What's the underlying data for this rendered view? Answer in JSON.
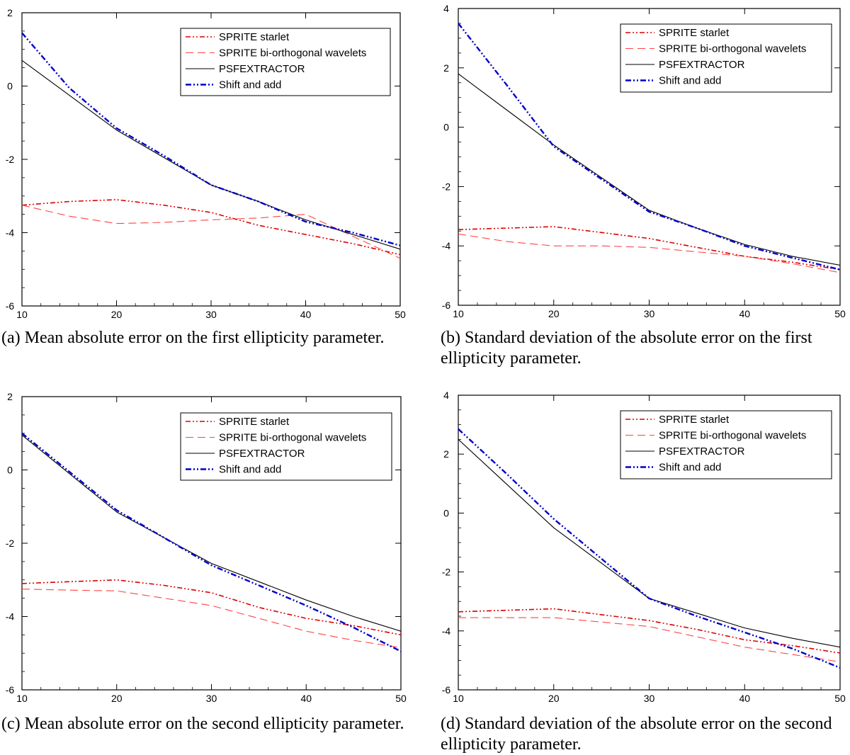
{
  "chart_data": [
    {
      "type": "line",
      "panel": "a",
      "caption": "(a) Mean absolute error on the first ellipticity parameter.",
      "xlim": [
        10,
        50
      ],
      "ylim": [
        -6,
        2
      ],
      "xticks": [
        10,
        20,
        30,
        40,
        50
      ],
      "yticks": [
        -6,
        -4,
        -2,
        0,
        2
      ],
      "legend_position": "top-right",
      "series": [
        {
          "name": "SPRITE starlet",
          "style": "dash-dot-dot",
          "color": "#dd0000",
          "x": [
            10,
            15,
            20,
            25,
            30,
            35,
            40,
            45,
            50
          ],
          "y": [
            -3.25,
            -3.15,
            -3.1,
            -3.25,
            -3.45,
            -3.8,
            -4.05,
            -4.3,
            -4.6
          ]
        },
        {
          "name": "SPRITE bi-orthogonal wavelets",
          "style": "dashed",
          "color": "#ff4444",
          "x": [
            10,
            15,
            20,
            25,
            30,
            35,
            40,
            45,
            50
          ],
          "y": [
            -3.25,
            -3.55,
            -3.75,
            -3.72,
            -3.65,
            -3.6,
            -3.5,
            -4.1,
            -4.7
          ]
        },
        {
          "name": "PSFEXTRACTOR",
          "style": "solid",
          "color": "#000000",
          "x": [
            10,
            15,
            20,
            25,
            30,
            35,
            40,
            45,
            50
          ],
          "y": [
            0.7,
            -0.25,
            -1.2,
            -1.95,
            -2.7,
            -3.15,
            -3.65,
            -4.05,
            -4.45
          ]
        },
        {
          "name": "Shift and add",
          "style": "dash-dot-dot-thick",
          "color": "#0000cc",
          "x": [
            10,
            15,
            20,
            25,
            30,
            35,
            40,
            45,
            50
          ],
          "y": [
            1.45,
            -0.05,
            -1.15,
            -1.9,
            -2.7,
            -3.15,
            -3.7,
            -4.0,
            -4.35
          ]
        }
      ]
    },
    {
      "type": "line",
      "panel": "b",
      "caption": "(b) Standard deviation of the absolute error on the first ellipticity parameter.",
      "xlim": [
        10,
        50
      ],
      "ylim": [
        -6,
        4
      ],
      "xticks": [
        10,
        20,
        30,
        40,
        50
      ],
      "yticks": [
        -6,
        -4,
        -2,
        0,
        2,
        4
      ],
      "legend_position": "top-right",
      "series": [
        {
          "name": "SPRITE starlet",
          "style": "dash-dot-dot",
          "color": "#dd0000",
          "x": [
            10,
            15,
            20,
            25,
            30,
            35,
            40,
            45,
            50
          ],
          "y": [
            -3.45,
            -3.4,
            -3.35,
            -3.55,
            -3.75,
            -4.05,
            -4.35,
            -4.55,
            -4.8
          ]
        },
        {
          "name": "SPRITE bi-orthogonal wavelets",
          "style": "dashed",
          "color": "#ff4444",
          "x": [
            10,
            15,
            20,
            25,
            30,
            35,
            40,
            45,
            50
          ],
          "y": [
            -3.6,
            -3.85,
            -4.0,
            -4.0,
            -4.05,
            -4.2,
            -4.35,
            -4.6,
            -4.9
          ]
        },
        {
          "name": "PSFEXTRACTOR",
          "style": "solid",
          "color": "#000000",
          "x": [
            10,
            15,
            20,
            25,
            30,
            35,
            40,
            45,
            50
          ],
          "y": [
            1.8,
            0.6,
            -0.6,
            -1.7,
            -2.8,
            -3.4,
            -3.95,
            -4.35,
            -4.65
          ]
        },
        {
          "name": "Shift and add",
          "style": "dash-dot-dot-thick",
          "color": "#0000cc",
          "x": [
            10,
            15,
            20,
            25,
            30,
            35,
            40,
            45,
            50
          ],
          "y": [
            3.5,
            1.45,
            -0.65,
            -1.75,
            -2.85,
            -3.4,
            -4.0,
            -4.4,
            -4.8
          ]
        }
      ]
    },
    {
      "type": "line",
      "panel": "c",
      "caption": "(c) Mean absolute error on the second ellipticity parameter.",
      "xlim": [
        10,
        50
      ],
      "ylim": [
        -6,
        2
      ],
      "xticks": [
        10,
        20,
        30,
        40,
        50
      ],
      "yticks": [
        -6,
        -4,
        -2,
        0,
        2
      ],
      "legend_position": "top-right",
      "series": [
        {
          "name": "SPRITE starlet",
          "style": "dash-dot-dot",
          "color": "#dd0000",
          "x": [
            10,
            15,
            20,
            25,
            30,
            35,
            40,
            45,
            50
          ],
          "y": [
            -3.1,
            -3.05,
            -3.0,
            -3.15,
            -3.35,
            -3.75,
            -4.05,
            -4.25,
            -4.5
          ]
        },
        {
          "name": "SPRITE bi-orthogonal wavelets",
          "style": "dashed",
          "color": "#ff4444",
          "x": [
            10,
            15,
            20,
            25,
            30,
            35,
            40,
            45,
            50
          ],
          "y": [
            -3.25,
            -3.28,
            -3.3,
            -3.5,
            -3.7,
            -4.05,
            -4.4,
            -4.65,
            -4.85
          ]
        },
        {
          "name": "PSFEXTRACTOR",
          "style": "solid",
          "color": "#000000",
          "x": [
            10,
            15,
            20,
            25,
            30,
            35,
            40,
            45,
            50
          ],
          "y": [
            0.95,
            -0.1,
            -1.15,
            -1.85,
            -2.55,
            -3.05,
            -3.55,
            -4.0,
            -4.4
          ]
        },
        {
          "name": "Shift and add",
          "style": "dash-dot-dot-thick",
          "color": "#0000cc",
          "x": [
            10,
            15,
            20,
            25,
            30,
            35,
            40,
            45,
            50
          ],
          "y": [
            1.0,
            -0.05,
            -1.1,
            -1.85,
            -2.6,
            -3.15,
            -3.7,
            -4.3,
            -4.95
          ]
        }
      ]
    },
    {
      "type": "line",
      "panel": "d",
      "caption": "(d) Standard deviation of the absolute error on the second ellipticity parameter.",
      "xlim": [
        10,
        50
      ],
      "ylim": [
        -6,
        4
      ],
      "xticks": [
        10,
        20,
        30,
        40,
        50
      ],
      "yticks": [
        -6,
        -4,
        -2,
        0,
        2,
        4
      ],
      "legend_position": "top-right",
      "series": [
        {
          "name": "SPRITE starlet",
          "style": "dash-dot-dot",
          "color": "#dd0000",
          "x": [
            10,
            15,
            20,
            25,
            30,
            35,
            40,
            45,
            50
          ],
          "y": [
            -3.35,
            -3.3,
            -3.25,
            -3.45,
            -3.65,
            -3.95,
            -4.3,
            -4.5,
            -4.75
          ]
        },
        {
          "name": "SPRITE bi-orthogonal wavelets",
          "style": "dashed",
          "color": "#ff4444",
          "x": [
            10,
            15,
            20,
            25,
            30,
            35,
            40,
            45,
            50
          ],
          "y": [
            -3.55,
            -3.55,
            -3.55,
            -3.7,
            -3.85,
            -4.2,
            -4.55,
            -4.8,
            -5.05
          ]
        },
        {
          "name": "PSFEXTRACTOR",
          "style": "solid",
          "color": "#000000",
          "x": [
            10,
            15,
            20,
            25,
            30,
            35,
            40,
            45,
            50
          ],
          "y": [
            2.5,
            1.0,
            -0.5,
            -1.7,
            -2.9,
            -3.4,
            -3.9,
            -4.25,
            -4.55
          ]
        },
        {
          "name": "Shift and add",
          "style": "dash-dot-dot-thick",
          "color": "#0000cc",
          "x": [
            10,
            15,
            20,
            25,
            30,
            35,
            40,
            45,
            50
          ],
          "y": [
            2.85,
            1.35,
            -0.2,
            -1.55,
            -2.9,
            -3.5,
            -4.05,
            -4.6,
            -5.25
          ]
        }
      ]
    }
  ]
}
